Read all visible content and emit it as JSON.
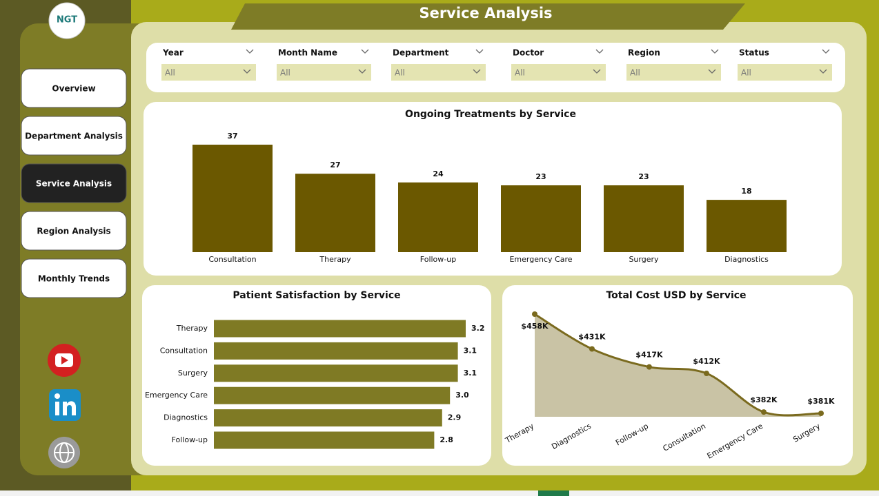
{
  "header": {
    "logo": "NGT",
    "title": "Service Analysis"
  },
  "nav": [
    "Overview",
    "Department Analysis",
    "Service Analysis",
    "Region Analysis",
    "Monthly Trends"
  ],
  "filters": [
    {
      "label": "Year",
      "value": "All"
    },
    {
      "label": "Month Name",
      "value": "All"
    },
    {
      "label": "Department",
      "value": "All"
    },
    {
      "label": "Doctor",
      "value": "All"
    },
    {
      "label": "Region",
      "value": "All"
    },
    {
      "label": "Status",
      "value": "All"
    }
  ],
  "chart_data": [
    {
      "type": "bar",
      "title": "Ongoing Treatments by Service",
      "color": "#6b5800",
      "categories": [
        "Consultation",
        "Therapy",
        "Follow-up",
        "Emergency Care",
        "Surgery",
        "Diagnostics"
      ],
      "values": [
        37,
        27,
        24,
        23,
        23,
        18
      ]
    },
    {
      "type": "barh",
      "title": "Patient Satisfaction by Service",
      "color": "#7f7a24",
      "categories": [
        "Therapy",
        "Consultation",
        "Surgery",
        "Emergency Care",
        "Diagnostics",
        "Follow-up"
      ],
      "values": [
        3.2,
        3.1,
        3.1,
        3.0,
        2.9,
        2.8
      ],
      "value_labels": [
        "3.2",
        "3.1",
        "3.1",
        "3.0",
        "2.9",
        "2.8"
      ]
    },
    {
      "type": "area",
      "title": "Total Cost USD by Service",
      "color": "#7a6a1e",
      "fill": "#c9c3a5",
      "categories": [
        "Therapy",
        "Diagnostics",
        "Follow-up",
        "Consultation",
        "Emergency Care",
        "Surgery"
      ],
      "values": [
        458000,
        431000,
        417000,
        412000,
        382000,
        381000
      ],
      "value_labels": [
        "$458K",
        "$431K",
        "$417K",
        "$412K",
        "$382K",
        "$381K"
      ]
    }
  ]
}
